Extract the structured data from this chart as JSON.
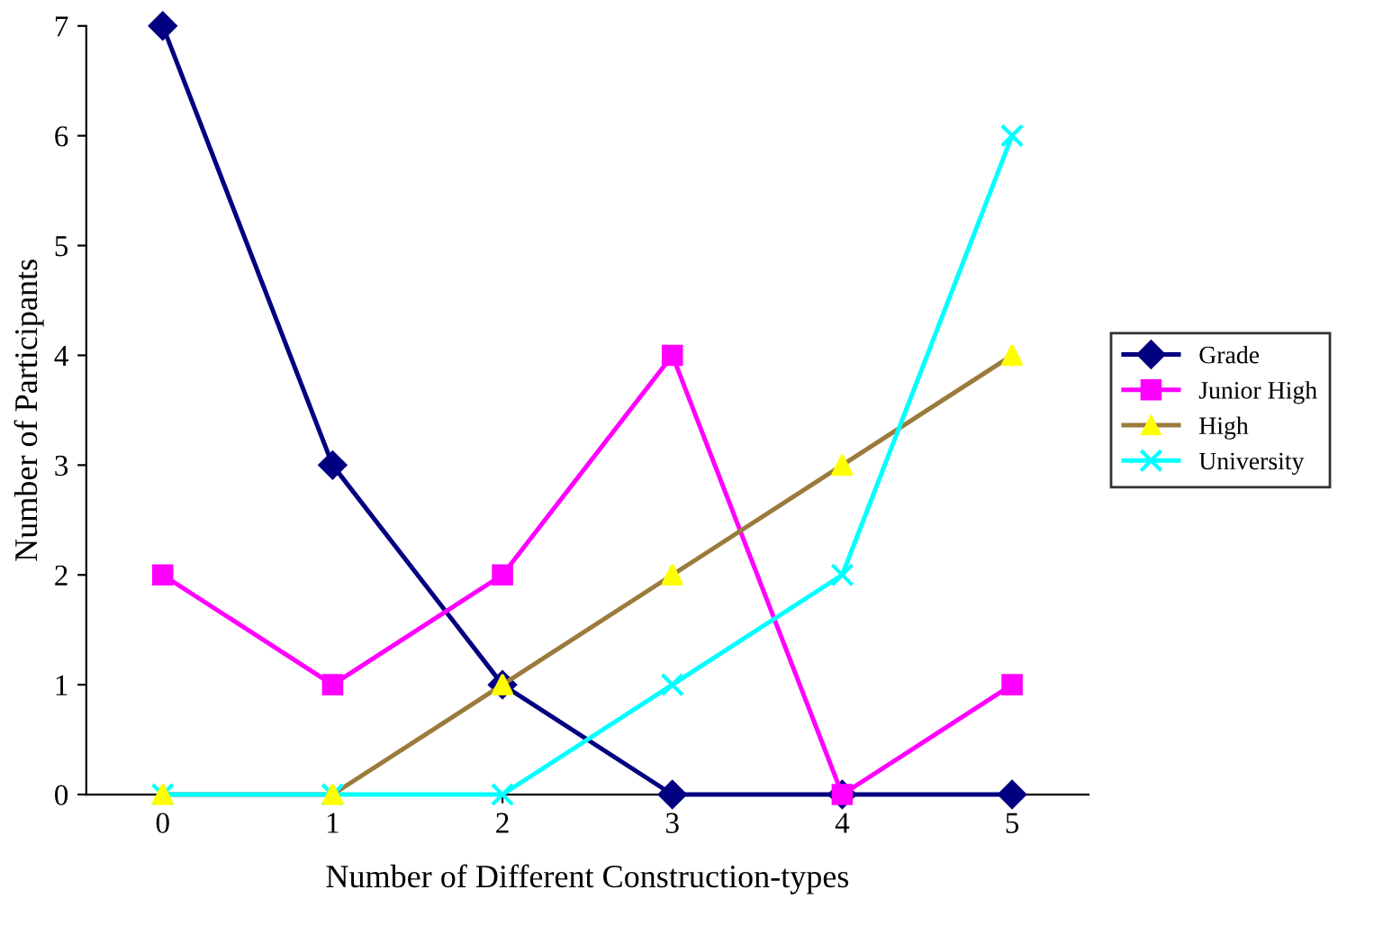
{
  "chart_data": {
    "type": "line",
    "xlabel": "Number of Different Construction-types",
    "ylabel": "Number of Participants",
    "categories": [
      "0",
      "1",
      "2",
      "3",
      "4",
      "5"
    ],
    "series": [
      {
        "name": "Grade",
        "color": "#000080",
        "marker": "diamond",
        "values": [
          7,
          3,
          1,
          0,
          0,
          0
        ]
      },
      {
        "name": "Junior High",
        "color": "#ff00ff",
        "marker": "square",
        "values": [
          2,
          1,
          2,
          4,
          0,
          1
        ]
      },
      {
        "name": "High",
        "color": "#9c7a3c",
        "colors": [
          "#ffff00",
          "#ffff00",
          "#ffff00",
          "#ffff00",
          "#ffff00",
          "#ffff00"
        ],
        "marker": "triangle",
        "values": [
          0,
          0,
          1,
          2,
          3,
          4
        ]
      },
      {
        "name": "University",
        "color": "#00ffff",
        "marker": "cross",
        "values": [
          0,
          0,
          0,
          1,
          2,
          6
        ]
      }
    ],
    "ylim": [
      0,
      7
    ],
    "yticks": [
      0,
      1,
      2,
      3,
      4,
      5,
      6,
      7
    ],
    "grid": false,
    "legend": "right",
    "line_style": "solid"
  }
}
